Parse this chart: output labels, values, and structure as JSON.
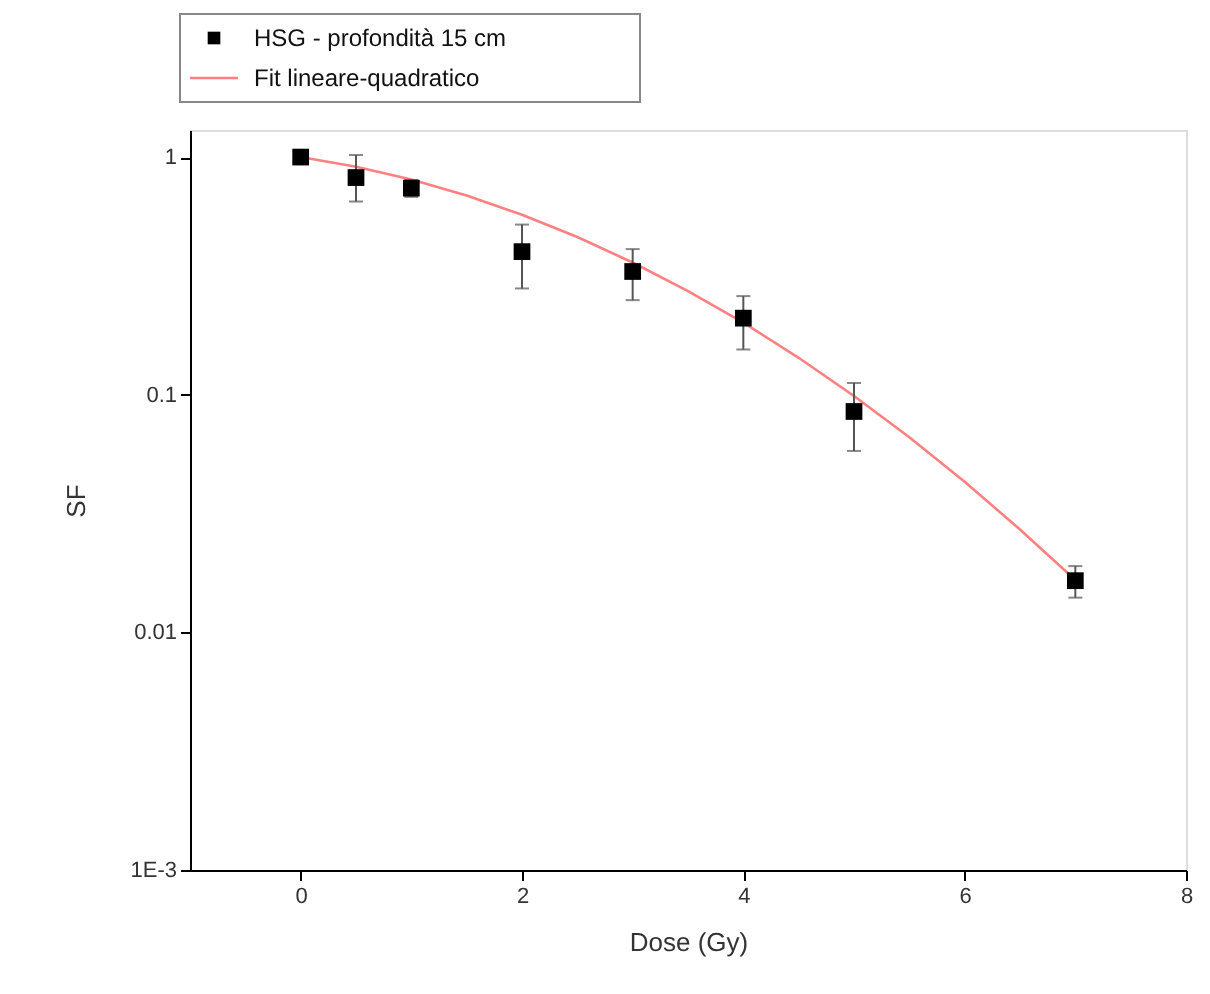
{
  "chart_data": {
    "type": "scatter",
    "xlabel": "Dose (Gy)",
    "ylabel": "SF",
    "log": "y",
    "xlim": [
      -1,
      8
    ],
    "xticks": [
      0,
      2,
      4,
      6,
      8
    ],
    "ylim": [
      0.001,
      1.3
    ],
    "yticks": [
      {
        "value": 0.001,
        "label": "1E-3"
      },
      0.01,
      0.1,
      1
    ],
    "grid": false,
    "legend": "top left",
    "series": [
      {
        "name": "HSG - profondità 15 cm",
        "color": "#000000",
        "marker": "square",
        "x": [
          0,
          0.5,
          1,
          2,
          3,
          4,
          5,
          7
        ],
        "values": [
          1,
          0.82,
          0.74,
          0.4,
          0.33,
          0.21,
          0.085,
          0.0165
        ],
        "errors": [
          null,
          [
            0.65,
            1.02
          ],
          [
            0.68,
            0.8
          ],
          [
            0.28,
            0.52
          ],
          [
            0.25,
            0.41
          ],
          [
            0.155,
            0.26
          ],
          [
            0.058,
            0.112
          ],
          [
            0.014,
            0.019
          ]
        ]
      },
      {
        "name": "Fit lineare-quadratico",
        "type": "line",
        "color": "#ff8080",
        "line_style": "solid",
        "x": [
          0,
          0.5,
          1,
          1.5,
          2,
          2.5,
          3,
          3.5,
          4,
          4.5,
          5,
          5.5,
          6,
          6.5,
          7
        ],
        "values": [
          1,
          0.911,
          0.805,
          0.689,
          0.572,
          0.461,
          0.36,
          0.273,
          0.201,
          0.143,
          0.0988,
          0.0662,
          0.043,
          0.0271,
          0.0166
        ]
      }
    ]
  }
}
